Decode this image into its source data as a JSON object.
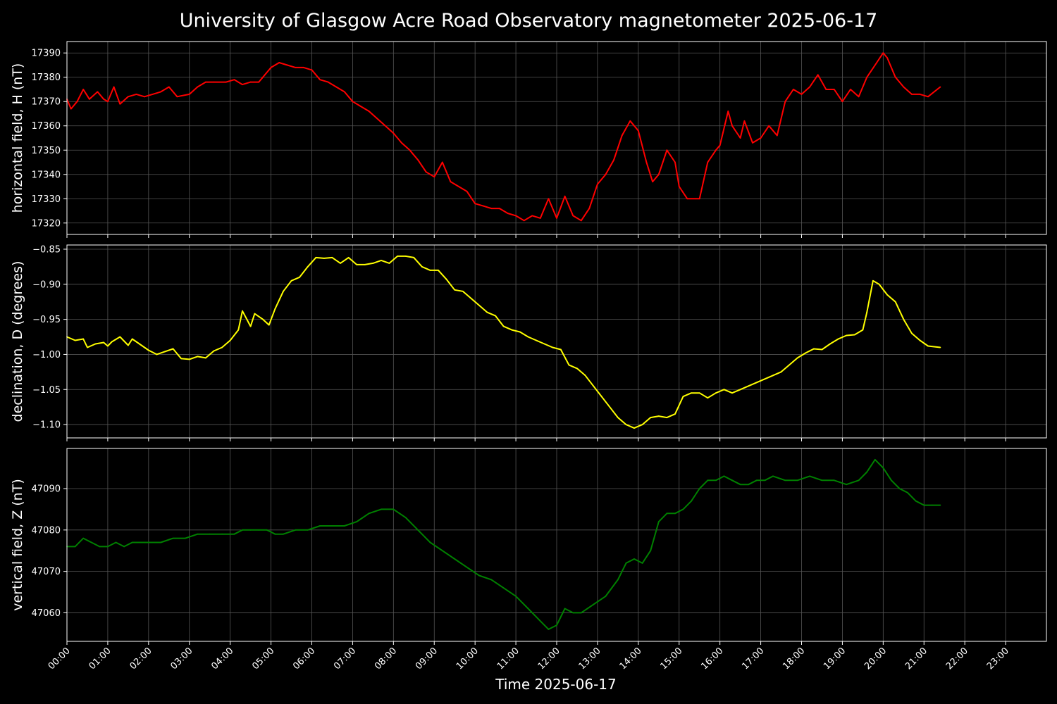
{
  "title": "University of Glasgow Acre Road Observatory magnetometer 2025-06-17",
  "xlabel": "Time 2025-06-17",
  "x_ticks": [
    "00:00",
    "01:00",
    "02:00",
    "03:00",
    "04:00",
    "05:00",
    "06:00",
    "07:00",
    "08:00",
    "09:00",
    "10:00",
    "11:00",
    "12:00",
    "13:00",
    "14:00",
    "15:00",
    "16:00",
    "17:00",
    "18:00",
    "19:00",
    "20:00",
    "21:00",
    "22:00",
    "23:00"
  ],
  "chart_data": [
    {
      "type": "line",
      "ylabel": "horizontal field, H (nT)",
      "color": "#ff0000",
      "ylim": [
        17315.3,
        17394.7
      ],
      "yticks": [
        17320,
        17330,
        17340,
        17350,
        17360,
        17370,
        17380,
        17390
      ],
      "xlim_hours": [
        0,
        24
      ],
      "grid": true,
      "series": [
        {
          "x": [
            0,
            0.1,
            0.25,
            0.4,
            0.55,
            0.75,
            0.9,
            1.0,
            1.15,
            1.3,
            1.5,
            1.7,
            1.9,
            2.1,
            2.3,
            2.5,
            2.7,
            3.0,
            3.2,
            3.4,
            3.6,
            3.9,
            4.1,
            4.3,
            4.5,
            4.7,
            4.8,
            5.0,
            5.2,
            5.4,
            5.6,
            5.8,
            6.0,
            6.2,
            6.4,
            6.6,
            6.8,
            7.0,
            7.2,
            7.4,
            7.6,
            7.8,
            8.0,
            8.2,
            8.4,
            8.6,
            8.8,
            9.0,
            9.2,
            9.4,
            9.6,
            9.8,
            10.0,
            10.2,
            10.4,
            10.6,
            10.8,
            11.0,
            11.2,
            11.4,
            11.6,
            11.8,
            12.0,
            12.2,
            12.4,
            12.6,
            12.8,
            13.0,
            13.2,
            13.4,
            13.6,
            13.8,
            14.0,
            14.2,
            14.35,
            14.5,
            14.7,
            14.9,
            15.0,
            15.2,
            15.4,
            15.5,
            15.7,
            15.9,
            16.0,
            16.2,
            16.3,
            16.5,
            16.6,
            16.8,
            17.0,
            17.2,
            17.4,
            17.6,
            17.8,
            18.0,
            18.2,
            18.4,
            18.6,
            18.8,
            19.0,
            19.2,
            19.4,
            19.6,
            19.8,
            20.0,
            20.1,
            20.3,
            20.5,
            20.7,
            20.9,
            21.1,
            21.4
          ],
          "values": [
            17371,
            17367,
            17370,
            17375,
            17371,
            17374,
            17371,
            17370,
            17376,
            17369,
            17372,
            17373,
            17372,
            17373,
            17374,
            17376,
            17372,
            17373,
            17376,
            17378,
            17378,
            17378,
            17379,
            17377,
            17378,
            17378,
            17380,
            17384,
            17386,
            17385,
            17384,
            17384,
            17383,
            17379,
            17378,
            17376,
            17374,
            17370,
            17368,
            17366,
            17363,
            17360,
            17357,
            17353,
            17350,
            17346,
            17341,
            17339,
            17345,
            17337,
            17335,
            17333,
            17328,
            17327,
            17326,
            17326,
            17324,
            17323,
            17321,
            17323,
            17322,
            17330,
            17322,
            17331,
            17323,
            17321,
            17326,
            17336,
            17340,
            17346,
            17356,
            17362,
            17358,
            17345,
            17337,
            17340,
            17350,
            17345,
            17335,
            17330,
            17330,
            17330,
            17345,
            17350,
            17352,
            17366,
            17360,
            17355,
            17362,
            17353,
            17355,
            17360,
            17356,
            17370,
            17375,
            17373,
            17376,
            17381,
            17375,
            17375,
            17370,
            17375,
            17372,
            17380,
            17385,
            17390,
            17388,
            17380,
            17376,
            17373,
            17373,
            17372,
            17376
          ]
        }
      ]
    },
    {
      "type": "line",
      "ylabel": "declination, D (degrees)",
      "color": "#ffff00",
      "ylim": [
        -1.119,
        -0.844
      ],
      "yticks": [
        -1.1,
        -1.05,
        -1.0,
        -0.95,
        -0.9,
        -0.85
      ],
      "ytick_labels": [
        "−1.10",
        "−1.05",
        "−1.00",
        "−0.95",
        "−0.90",
        "−0.85"
      ],
      "xlim_hours": [
        0,
        24
      ],
      "grid": true,
      "series": [
        {
          "x": [
            0,
            0.2,
            0.4,
            0.5,
            0.7,
            0.9,
            1.0,
            1.1,
            1.3,
            1.5,
            1.6,
            1.8,
            2.0,
            2.2,
            2.4,
            2.6,
            2.8,
            3.0,
            3.2,
            3.4,
            3.6,
            3.8,
            4.0,
            4.2,
            4.3,
            4.5,
            4.6,
            4.8,
            4.95,
            5.1,
            5.3,
            5.5,
            5.7,
            5.9,
            6.1,
            6.3,
            6.5,
            6.7,
            6.9,
            7.1,
            7.3,
            7.5,
            7.7,
            7.9,
            8.1,
            8.3,
            8.5,
            8.7,
            8.9,
            9.1,
            9.3,
            9.5,
            9.7,
            9.9,
            10.1,
            10.3,
            10.5,
            10.7,
            10.9,
            11.1,
            11.3,
            11.5,
            11.7,
            11.9,
            12.1,
            12.3,
            12.5,
            12.7,
            12.9,
            13.1,
            13.3,
            13.5,
            13.7,
            13.9,
            14.1,
            14.3,
            14.5,
            14.7,
            14.9,
            15.1,
            15.3,
            15.5,
            15.7,
            15.9,
            16.1,
            16.3,
            16.5,
            16.7,
            16.9,
            17.1,
            17.3,
            17.5,
            17.7,
            17.9,
            18.1,
            18.3,
            18.5,
            18.7,
            18.9,
            19.1,
            19.3,
            19.5,
            19.6,
            19.75,
            19.9,
            20.1,
            20.3,
            20.5,
            20.7,
            20.9,
            21.1,
            21.4
          ],
          "values": [
            -0.975,
            -0.98,
            -0.978,
            -0.99,
            -0.985,
            -0.983,
            -0.988,
            -0.982,
            -0.975,
            -0.987,
            -0.978,
            -0.986,
            -0.994,
            -1.0,
            -0.996,
            -0.992,
            -1.006,
            -1.007,
            -1.003,
            -1.005,
            -0.995,
            -0.99,
            -0.98,
            -0.965,
            -0.938,
            -0.96,
            -0.942,
            -0.95,
            -0.958,
            -0.935,
            -0.91,
            -0.895,
            -0.89,
            -0.875,
            -0.862,
            -0.863,
            -0.862,
            -0.87,
            -0.862,
            -0.872,
            -0.872,
            -0.87,
            -0.866,
            -0.87,
            -0.86,
            -0.86,
            -0.862,
            -0.875,
            -0.88,
            -0.88,
            -0.893,
            -0.908,
            -0.91,
            -0.92,
            -0.93,
            -0.94,
            -0.945,
            -0.96,
            -0.965,
            -0.968,
            -0.975,
            -0.98,
            -0.985,
            -0.99,
            -0.993,
            -1.015,
            -1.02,
            -1.03,
            -1.045,
            -1.06,
            -1.075,
            -1.09,
            -1.1,
            -1.105,
            -1.1,
            -1.09,
            -1.088,
            -1.09,
            -1.085,
            -1.06,
            -1.055,
            -1.055,
            -1.062,
            -1.055,
            -1.05,
            -1.055,
            -1.05,
            -1.045,
            -1.04,
            -1.035,
            -1.03,
            -1.025,
            -1.015,
            -1.005,
            -0.998,
            -0.992,
            -0.993,
            -0.985,
            -0.978,
            -0.973,
            -0.972,
            -0.965,
            -0.94,
            -0.895,
            -0.9,
            -0.915,
            -0.925,
            -0.95,
            -0.97,
            -0.98,
            -0.988,
            -0.99
          ]
        }
      ]
    },
    {
      "type": "line",
      "ylabel": "vertical field, Z (nT)",
      "color": "#008000",
      "ylim": [
        47053.1,
        47099.7
      ],
      "yticks": [
        47060,
        47070,
        47080,
        47090
      ],
      "xlim_hours": [
        0,
        24
      ],
      "grid": true,
      "series": [
        {
          "x": [
            0,
            0.2,
            0.4,
            0.6,
            0.8,
            1.0,
            1.2,
            1.4,
            1.6,
            1.8,
            2.0,
            2.3,
            2.6,
            2.9,
            3.2,
            3.5,
            3.8,
            4.1,
            4.3,
            4.5,
            4.7,
            4.9,
            5.1,
            5.3,
            5.6,
            5.9,
            6.2,
            6.5,
            6.8,
            7.1,
            7.4,
            7.7,
            8.0,
            8.3,
            8.6,
            8.9,
            9.2,
            9.5,
            9.8,
            10.1,
            10.4,
            10.7,
            11.0,
            11.3,
            11.6,
            11.8,
            12.0,
            12.2,
            12.4,
            12.6,
            12.9,
            13.2,
            13.5,
            13.7,
            13.9,
            14.1,
            14.3,
            14.5,
            14.7,
            14.9,
            15.1,
            15.3,
            15.5,
            15.7,
            15.9,
            16.1,
            16.3,
            16.5,
            16.7,
            16.9,
            17.1,
            17.3,
            17.6,
            17.9,
            18.2,
            18.5,
            18.8,
            19.1,
            19.4,
            19.6,
            19.8,
            20.0,
            20.2,
            20.4,
            20.6,
            20.8,
            21.0,
            21.2,
            21.4
          ],
          "values": [
            47076,
            47076,
            47078,
            47077,
            47076,
            47076,
            47077,
            47076,
            47077,
            47077,
            47077,
            47077,
            47078,
            47078,
            47079,
            47079,
            47079,
            47079,
            47080,
            47080,
            47080,
            47080,
            47079,
            47079,
            47080,
            47080,
            47081,
            47081,
            47081,
            47082,
            47084,
            47085,
            47085,
            47083,
            47080,
            47077,
            47075,
            47073,
            47071,
            47069,
            47068,
            47066,
            47064,
            47061,
            47058,
            47056,
            47057,
            47061,
            47060,
            47060,
            47062,
            47064,
            47068,
            47072,
            47073,
            47072,
            47075,
            47082,
            47084,
            47084,
            47085,
            47087,
            47090,
            47092,
            47092,
            47093,
            47092,
            47091,
            47091,
            47092,
            47092,
            47093,
            47092,
            47092,
            47093,
            47092,
            47092,
            47091,
            47092,
            47094,
            47097,
            47095,
            47092,
            47090,
            47089,
            47087,
            47086,
            47086,
            47086
          ]
        }
      ]
    }
  ]
}
